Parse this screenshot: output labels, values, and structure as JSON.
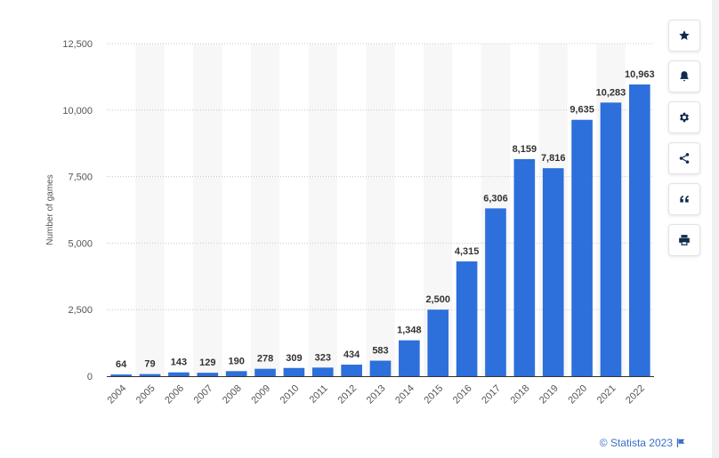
{
  "chart_data": {
    "type": "bar",
    "categories": [
      "2004",
      "2005",
      "2006",
      "2007",
      "2008",
      "2009",
      "2010",
      "2011",
      "2012",
      "2013",
      "2014",
      "2015",
      "2016",
      "2017",
      "2018",
      "2019",
      "2020",
      "2021",
      "2022"
    ],
    "values": [
      64,
      79,
      143,
      129,
      190,
      278,
      309,
      323,
      434,
      583,
      1348,
      2500,
      4315,
      6306,
      8159,
      7816,
      9635,
      10283,
      10963
    ],
    "value_labels": [
      "64",
      "79",
      "143",
      "129",
      "190",
      "278",
      "309",
      "323",
      "434",
      "583",
      "1,348",
      "2,500",
      "4,315",
      "6,306",
      "8,159",
      "7,816",
      "9,635",
      "10,283",
      "10,963"
    ],
    "ylabel": "Number of games",
    "xlabel": "",
    "title": "",
    "ylim": [
      0,
      12500
    ],
    "yticks": [
      0,
      2500,
      5000,
      7500,
      10000,
      12500
    ],
    "ytick_labels": [
      "0",
      "2,500",
      "5,000",
      "7,500",
      "10,000",
      "12,500"
    ],
    "grid": true,
    "bar_color": "#2d6fdb",
    "band_color": "#f7f7f7"
  },
  "toolbar": {
    "buttons": [
      {
        "name": "favorite-button",
        "icon": "star-icon"
      },
      {
        "name": "notification-button",
        "icon": "bell-icon"
      },
      {
        "name": "settings-button",
        "icon": "gear-icon"
      },
      {
        "name": "share-button",
        "icon": "share-icon"
      },
      {
        "name": "cite-button",
        "icon": "quote-icon"
      },
      {
        "name": "print-button",
        "icon": "print-icon"
      }
    ]
  },
  "footer": {
    "copyright": "© Statista 2023"
  }
}
